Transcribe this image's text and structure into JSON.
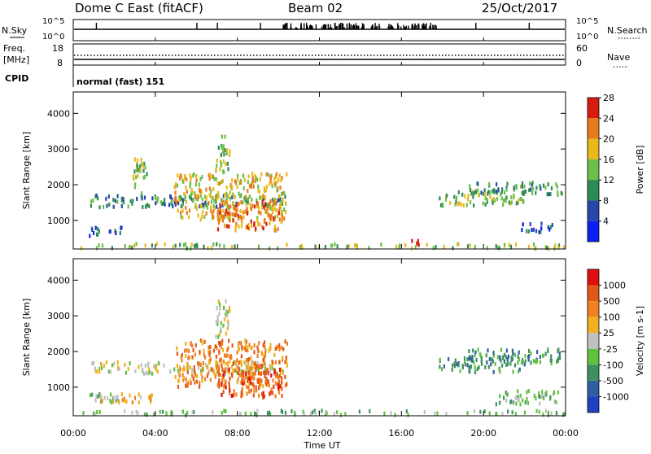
{
  "header": {
    "station": "Dome C East (fitACF)",
    "beam": "Beam 02",
    "date": "25/Oct/2017"
  },
  "strips": {
    "nsky": {
      "label": "N.Sky",
      "top_tick": "10^5",
      "bottom_tick": "10^0",
      "right_top": "10^5",
      "right_bottom": "10^0",
      "right_label": "N.Search"
    },
    "freq": {
      "label_line1": "Freq.",
      "label_line2": "[MHz]",
      "ticks": [
        "18",
        "8"
      ],
      "right_ticks": [
        "60",
        "0"
      ],
      "right_label": "Nave"
    },
    "cpid": {
      "label": "CPID",
      "text": "normal (fast) 151"
    }
  },
  "chart_data": [
    {
      "type": "heatmap",
      "panel": "power",
      "ylabel": "Slant Range [km]",
      "xlabel": "Time UT",
      "xlim_hours": [
        0,
        24
      ],
      "ylim": [
        200,
        4600
      ],
      "x_ticks": [
        "00:00",
        "04:00",
        "08:00",
        "12:00",
        "16:00",
        "20:00",
        "00:00"
      ],
      "y_ticks": [
        1000,
        2000,
        3000,
        4000
      ],
      "colorbar": {
        "label": "Power [dB]",
        "ticks": [
          "4",
          "8",
          "12",
          "16",
          "20",
          "24",
          "28"
        ],
        "colors": [
          "#0a1ff0",
          "#2646a8",
          "#2e8a55",
          "#6bc048",
          "#e8b81a",
          "#e87a1e",
          "#d81c10"
        ]
      },
      "regions": [
        {
          "t": [
            0.7,
            2.4
          ],
          "r": [
            550,
            800
          ],
          "level": 1
        },
        {
          "t": [
            0.8,
            10.4
          ],
          "r": [
            1350,
            1700
          ],
          "level": 2
        },
        {
          "t": [
            4.9,
            10.4
          ],
          "r": [
            1000,
            2300
          ],
          "level": 4
        },
        {
          "t": [
            7.0,
            10.2
          ],
          "r": [
            700,
            1500
          ],
          "level": 5
        },
        {
          "t": [
            6.9,
            7.6
          ],
          "r": [
            2300,
            3400
          ],
          "level": 3
        },
        {
          "t": [
            2.9,
            3.6
          ],
          "r": [
            1700,
            2700
          ],
          "level": 3
        },
        {
          "t": [
            16.3,
            16.9
          ],
          "r": [
            200,
            420
          ],
          "level": 6
        },
        {
          "t": [
            17.8,
            22.0
          ],
          "r": [
            1400,
            1800
          ],
          "level": 3
        },
        {
          "t": [
            19.2,
            23.8
          ],
          "r": [
            1700,
            2050
          ],
          "level": 2
        },
        {
          "t": [
            21.8,
            23.4
          ],
          "r": [
            650,
            900
          ],
          "level": 1
        },
        {
          "t": [
            0.0,
            24.0
          ],
          "r": [
            200,
            330
          ],
          "level": 3
        }
      ]
    },
    {
      "type": "heatmap",
      "panel": "velocity",
      "ylabel": "Slant Range [km]",
      "xlabel": "Time UT",
      "xlim_hours": [
        0,
        24
      ],
      "ylim": [
        200,
        4600
      ],
      "x_ticks": [
        "00:00",
        "04:00",
        "08:00",
        "12:00",
        "16:00",
        "20:00",
        "00:00"
      ],
      "y_ticks": [
        1000,
        2000,
        3000,
        4000
      ],
      "colorbar": {
        "label": "Velocity [m s-1]",
        "ticks": [
          "1000",
          "500",
          "100",
          "25",
          "-25",
          "-100",
          "-500",
          "-1000"
        ],
        "colors": [
          "#2040c0",
          "#2e5fa0",
          "#3e9060",
          "#60c040",
          "#c0c0c0",
          "#f0b020",
          "#f08020",
          "#e05818",
          "#e01010"
        ]
      },
      "regions": [
        {
          "t": [
            0.7,
            2.4
          ],
          "r": [
            550,
            800
          ],
          "level": 3
        },
        {
          "t": [
            1.0,
            3.8
          ],
          "r": [
            550,
            800
          ],
          "level": 5
        },
        {
          "t": [
            0.8,
            10.4
          ],
          "r": [
            1350,
            1700
          ],
          "level": 4
        },
        {
          "t": [
            4.9,
            10.4
          ],
          "r": [
            1000,
            2300
          ],
          "level": 6
        },
        {
          "t": [
            7.0,
            10.2
          ],
          "r": [
            700,
            1500
          ],
          "level": 7
        },
        {
          "t": [
            6.9,
            7.6
          ],
          "r": [
            2300,
            3400
          ],
          "level": 4
        },
        {
          "t": [
            17.8,
            22.0
          ],
          "r": [
            1400,
            1800
          ],
          "level": 2
        },
        {
          "t": [
            19.2,
            23.8
          ],
          "r": [
            1650,
            2050
          ],
          "level": 2
        },
        {
          "t": [
            20.5,
            23.6
          ],
          "r": [
            500,
            900
          ],
          "level": 3
        },
        {
          "t": [
            0.0,
            24.0
          ],
          "r": [
            200,
            330
          ],
          "level": 3
        }
      ]
    }
  ]
}
